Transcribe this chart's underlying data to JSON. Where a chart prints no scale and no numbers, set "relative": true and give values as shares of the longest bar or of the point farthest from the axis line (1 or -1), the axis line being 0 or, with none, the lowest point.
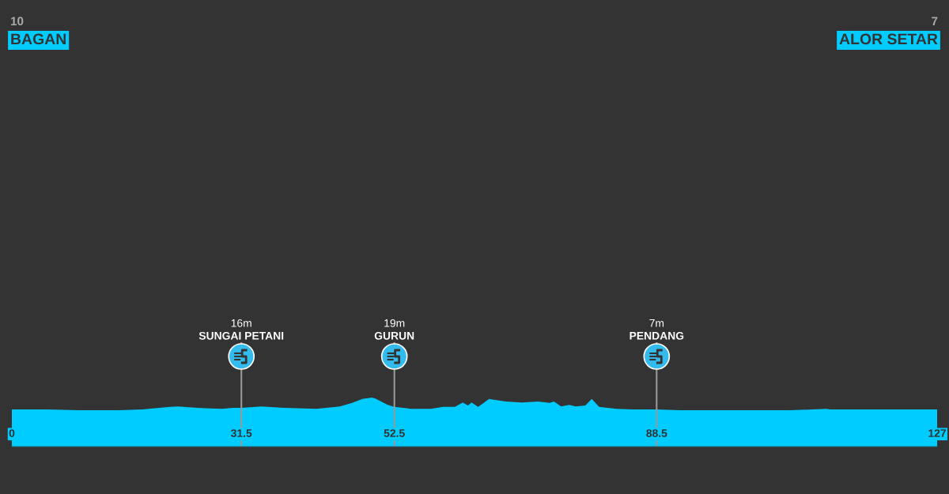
{
  "chart_data": {
    "type": "area",
    "relative": true,
    "color": "#00ccff",
    "x": [
      0,
      4.9,
      9.2,
      14.7,
      17.9,
      21.7,
      22.8,
      25.5,
      28.8,
      30.4,
      31.5,
      34.2,
      37.4,
      41.8,
      45.0,
      46.7,
      48.1,
      49.4,
      49.9,
      51.6,
      52.5,
      54.8,
      57.5,
      59.2,
      60.8,
      61.9,
      62.6,
      63.1,
      64.0,
      65.5,
      67.8,
      70.0,
      72.2,
      73.8,
      74.4,
      75.4,
      76.5,
      77.4,
      78.7,
      79.6,
      80.6,
      83.0,
      85.2,
      88.5,
      91.7,
      96.1,
      101.5,
      106.9,
      111.8,
      112.3,
      117.8,
      123.2,
      127
    ],
    "values": [
      0.76,
      0.76,
      0.74,
      0.74,
      0.76,
      0.81,
      0.82,
      0.79,
      0.77,
      0.79,
      0.79,
      0.82,
      0.79,
      0.77,
      0.82,
      0.89,
      0.97,
      1.0,
      0.98,
      0.85,
      0.81,
      0.77,
      0.77,
      0.81,
      0.81,
      0.9,
      0.84,
      0.9,
      0.81,
      0.97,
      0.92,
      0.9,
      0.92,
      0.89,
      0.92,
      0.82,
      0.85,
      0.82,
      0.84,
      0.97,
      0.81,
      0.77,
      0.76,
      0.76,
      0.74,
      0.74,
      0.74,
      0.74,
      0.77,
      0.76,
      0.76,
      0.76,
      0.76
    ],
    "xlim": [
      0,
      127
    ],
    "xticks": [
      0,
      31.5,
      52.5,
      88.5,
      127
    ],
    "ref_lines": [
      {
        "axis": "x",
        "value": 31.5,
        "label": "SUNGAI PETANI",
        "color": "#999999"
      },
      {
        "axis": "x",
        "value": 52.5,
        "label": "GURUN",
        "color": "#999999"
      },
      {
        "axis": "x",
        "value": 88.5,
        "label": "PENDANG",
        "color": "#999999"
      }
    ],
    "annotations": [
      "10",
      "BAGAN",
      "7",
      "ALOR SETAR",
      "16m",
      "19m",
      "7m"
    ],
    "grid": false
  }
}
